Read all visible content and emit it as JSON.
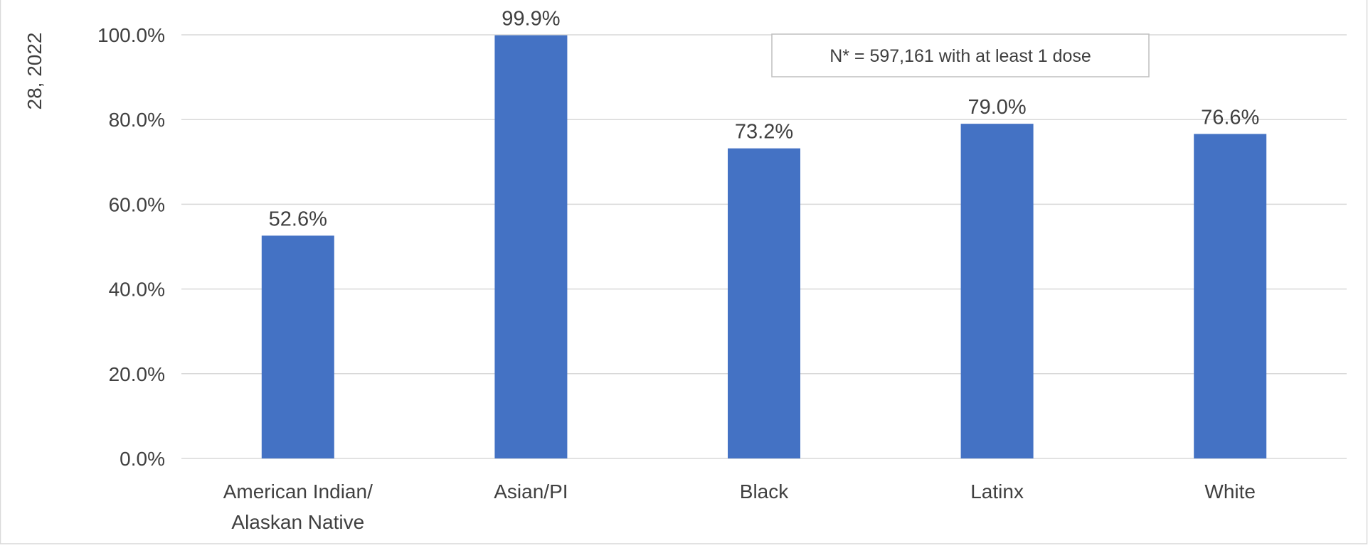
{
  "chart_data": {
    "type": "bar",
    "ylabel": "28, 2022",
    "categories": [
      [
        "American Indian/",
        "Alaskan Native"
      ],
      [
        "Asian/PI"
      ],
      [
        "Black"
      ],
      [
        "Latinx"
      ],
      [
        "White"
      ]
    ],
    "values": [
      52.6,
      99.9,
      73.2,
      79.0,
      76.6
    ],
    "data_labels": [
      "52.6%",
      "99.9%",
      "73.2%",
      "79.0%",
      "76.6%"
    ],
    "yticks": [
      "0.0%",
      "20.0%",
      "40.0%",
      "60.0%",
      "80.0%",
      "100.0%"
    ],
    "ylim": [
      0,
      100
    ],
    "grid": true,
    "annotation": "N* = 597,161 with at least 1 dose",
    "colors": {
      "bar": "#4472C4",
      "grid": "#D9D9D9",
      "text": "#404040",
      "frame": "#D9D9D9"
    }
  }
}
